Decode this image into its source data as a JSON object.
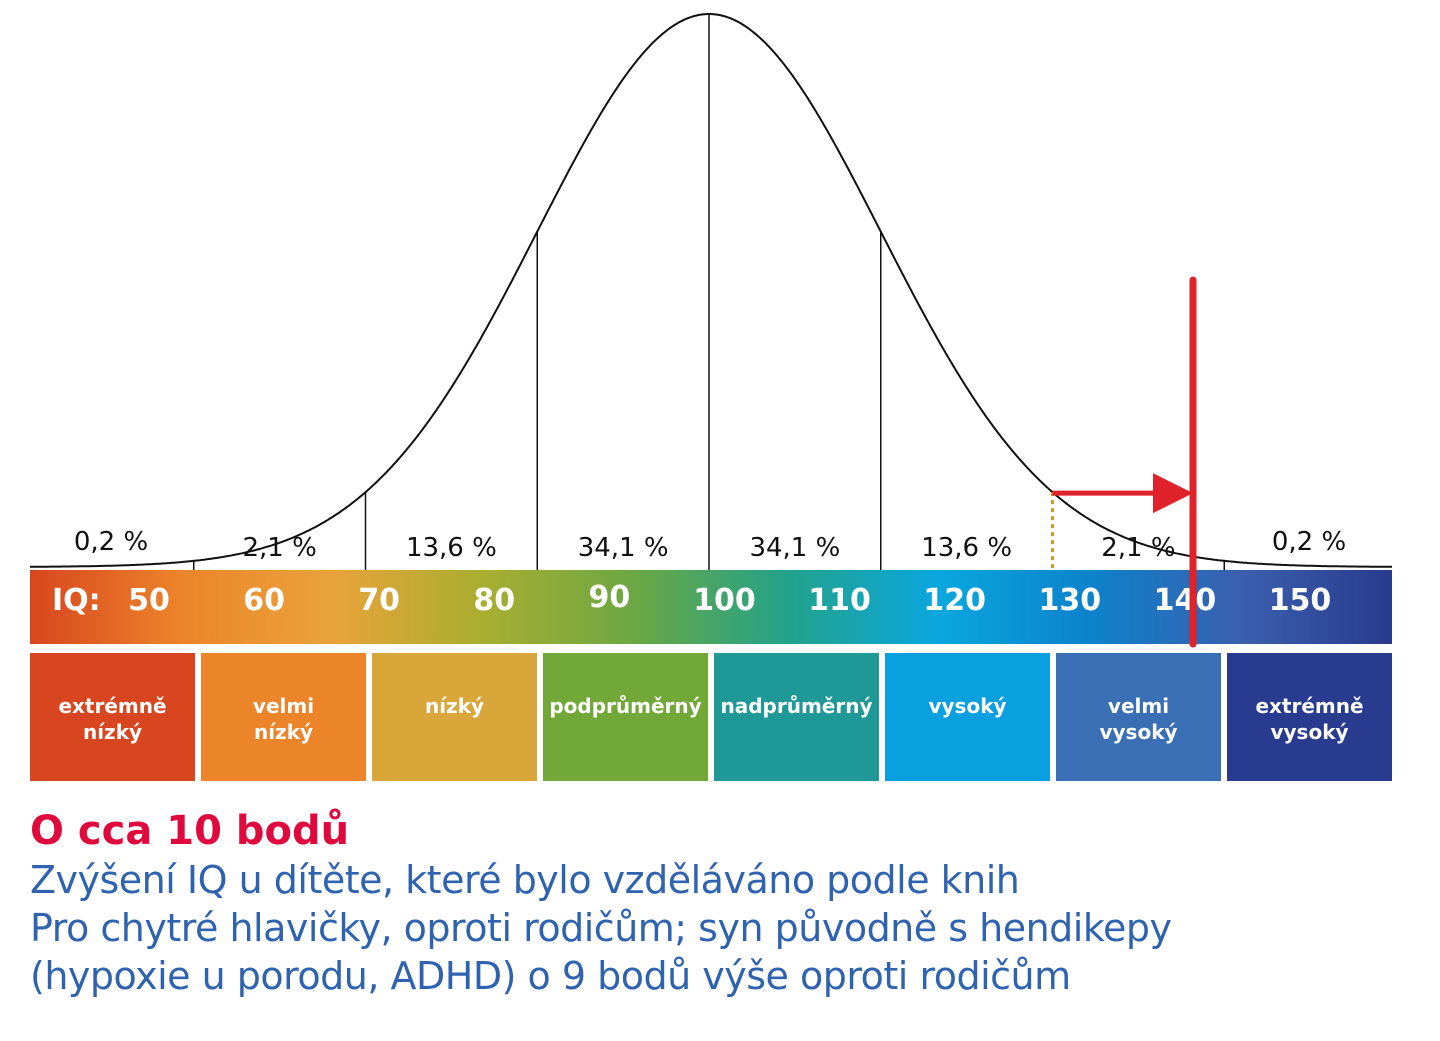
{
  "chart_data": {
    "type": "area",
    "title": "",
    "xlabel": "IQ:",
    "x_ticks": [
      50,
      60,
      70,
      80,
      90,
      100,
      110,
      120,
      130,
      140,
      150
    ],
    "x_tick_labels": [
      "50",
      "60",
      "70",
      "80",
      "90",
      "100",
      "110",
      "120",
      "130",
      "140",
      "150"
    ],
    "xlim": [
      45,
      155
    ],
    "distribution": {
      "kind": "normal",
      "mean": 100,
      "sd": 15
    },
    "boundaries": [
      55,
      70,
      85,
      100,
      115,
      130,
      145
    ],
    "segment_percentages": [
      "0,2 %",
      "2,1 %",
      "13,6 %",
      "34,1 %",
      "34,1 %",
      "13,6 %",
      "2,1 %",
      "0,2 %"
    ],
    "categories": [
      {
        "label": [
          "extrémně",
          "nízký"
        ],
        "color": "#d8461f"
      },
      {
        "label": [
          "velmi",
          "nízký"
        ],
        "color": "#ec842a"
      },
      {
        "label": [
          "nízký"
        ],
        "color": "#d9a63a"
      },
      {
        "label": [
          "podprůměrný"
        ],
        "color": "#72a838"
      },
      {
        "label": [
          "nadprůměrný"
        ],
        "color": "#1f9898"
      },
      {
        "label": [
          "vysoký"
        ],
        "color": "#0a9fdf"
      },
      {
        "label": [
          "velmi",
          "vysoký"
        ],
        "color": "#3b6fb5"
      },
      {
        "label": [
          "extrémně",
          "vysoký"
        ],
        "color": "#283b8e"
      }
    ],
    "annotation": {
      "from_iq": 130,
      "to_iq": 140,
      "color": "#e0232a"
    },
    "gradient_colors": [
      "#d8461f",
      "#ec842a",
      "#e9a33a",
      "#a8ae30",
      "#6ba744",
      "#23a28a",
      "#0aa7df",
      "#0c82cc",
      "#3b5fae",
      "#283b8e"
    ]
  },
  "caption": {
    "headline": "O cca 10 bodů",
    "headline_color": "#e0093e",
    "text_color": "#2f63b0",
    "lines": [
      "Zvýšení IQ u dítěte, které bylo vzděláváno podle knih",
      "Pro chytré hlavičky, oproti rodičům; syn původně s hendikepy",
      "(hypoxie u porodu, ADHD) o 9 bodů výše oproti rodičům"
    ]
  }
}
